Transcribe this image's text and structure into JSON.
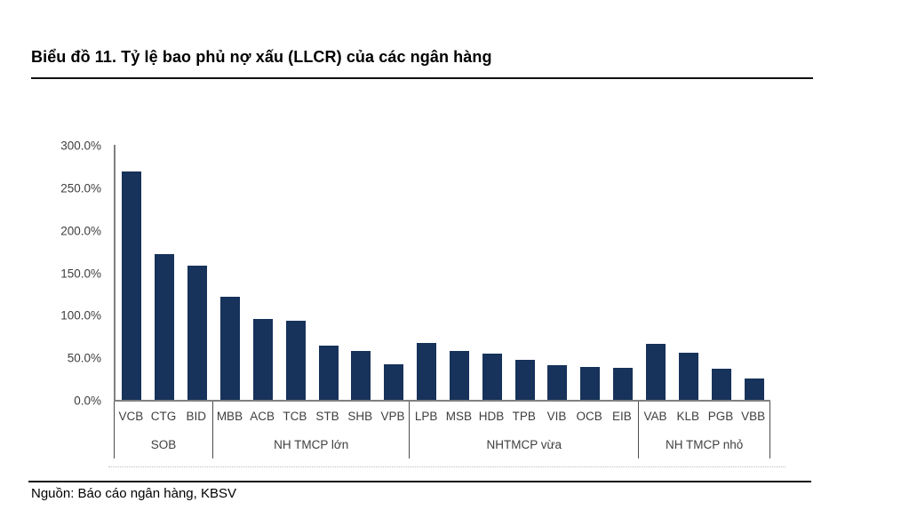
{
  "title": "Biểu đồ 11. Tỷ lệ bao phủ nợ xấu (LLCR) của các ngân hàng",
  "source": "Nguồn: Báo cáo ngân hàng, KBSV",
  "colors": {
    "bar": "#17325B",
    "axis": "#808080",
    "label_text": "#3f3f3f"
  },
  "chart_data": {
    "type": "bar",
    "title": "Tỷ lệ bao phủ nợ xấu (LLCR) của các ngân hàng",
    "unit": "%",
    "ylim": [
      0,
      300
    ],
    "y_tick_step": 50,
    "y_tick_labels": [
      "0.0%",
      "50.0%",
      "100.0%",
      "150.0%",
      "200.0%",
      "250.0%",
      "300.0%"
    ],
    "grid": false,
    "legend_position": "none",
    "groups": [
      {
        "label": "SOB",
        "banks": [
          "VCB",
          "CTG",
          "BID"
        ],
        "values": [
          270,
          172,
          159
        ]
      },
      {
        "label": "NH TMCP lớn",
        "banks": [
          "MBB",
          "ACB",
          "TCB",
          "STB",
          "SHB",
          "VPB"
        ],
        "values": [
          122,
          96,
          94,
          65,
          59,
          43
        ]
      },
      {
        "label": "NHTMCP vừa",
        "banks": [
          "LPB",
          "MSB",
          "HDB",
          "TPB",
          "VIB",
          "OCB",
          "EIB"
        ],
        "values": [
          68,
          59,
          55,
          48,
          42,
          40,
          39
        ]
      },
      {
        "label": "NH TMCP nhỏ",
        "banks": [
          "VAB",
          "KLB",
          "PGB",
          "VBB"
        ],
        "values": [
          67,
          56,
          38,
          26
        ]
      }
    ]
  }
}
